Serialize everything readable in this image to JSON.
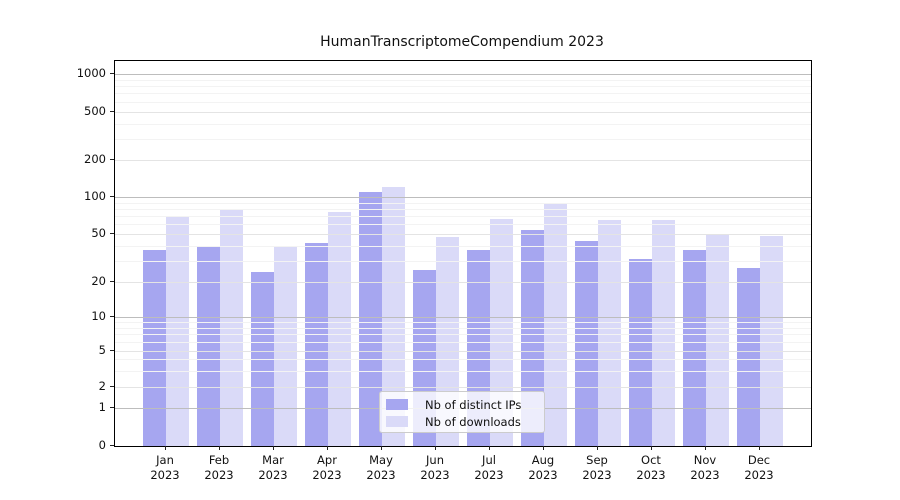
{
  "chart": {
    "title": "HumanTranscriptomeCompendium 2023",
    "legend": [
      {
        "label": "Nb of distinct IPs",
        "color": "#a6a6f0"
      },
      {
        "label": "Nb of downloads",
        "color": "#dadaf8"
      }
    ]
  },
  "chart_data": {
    "type": "bar",
    "title": "HumanTranscriptomeCompendium 2023",
    "categories": [
      "Jan 2023",
      "Feb 2023",
      "Mar 2023",
      "Apr 2023",
      "May 2023",
      "Jun 2023",
      "Jul 2023",
      "Aug 2023",
      "Sep 2023",
      "Oct 2023",
      "Nov 2023",
      "Dec 2023"
    ],
    "month_labels": [
      "Jan",
      "Feb",
      "Mar",
      "Apr",
      "May",
      "Jun",
      "Jul",
      "Aug",
      "Sep",
      "Oct",
      "Nov",
      "Dec"
    ],
    "year_label": "2023",
    "series": [
      {
        "name": "Nb of distinct IPs",
        "color": "#a6a6f0",
        "values": [
          37,
          40,
          24,
          42,
          110,
          25,
          37,
          54,
          44,
          31,
          37,
          26
        ]
      },
      {
        "name": "Nb of downloads",
        "color": "#dadaf8",
        "values": [
          70,
          79,
          40,
          76,
          120,
          47,
          66,
          88,
          65,
          65,
          50,
          48
        ]
      }
    ],
    "xlabel": "",
    "ylabel": "",
    "yscale": "symlog",
    "y_ticks": [
      0,
      1,
      2,
      5,
      10,
      20,
      50,
      100,
      200,
      500,
      1000
    ],
    "ylim": [
      0,
      1400
    ],
    "grid": true,
    "grid_minor": true,
    "legend_position": "inside lower-center",
    "colors": {
      "grid_major": "#bdbdbd",
      "grid_mid": "#e4e4e4",
      "grid_faint": "#f3f3f3",
      "spine": "#000000",
      "text": "#111111"
    }
  }
}
